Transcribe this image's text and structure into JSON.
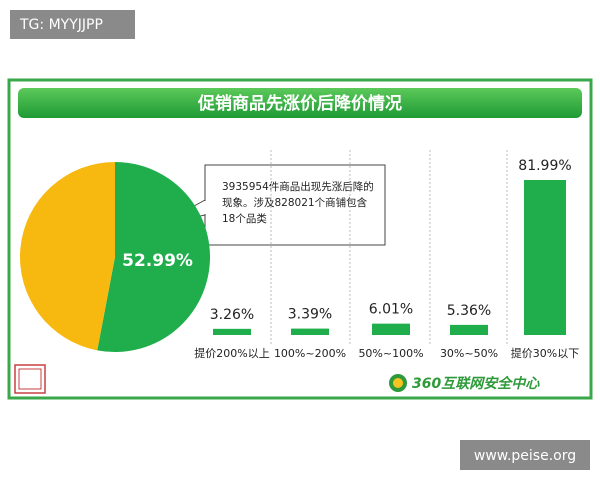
{
  "watermark": "TG: MYYJJPP",
  "site": "www.peise.org",
  "brand": "360互联网安全中心",
  "chart_data": [
    {
      "type": "pie",
      "title": "促销商品先涨价后降价情况",
      "values": [
        52.99,
        47.01
      ],
      "value_labels": [
        "52.99%",
        null
      ],
      "colors": [
        "#1fae4b",
        "#f7b90f"
      ],
      "annotation": [
        "3935954件商品出现先涨后降的",
        "现象。涉及828021个商铺包含",
        "18个品类"
      ]
    },
    {
      "type": "bar",
      "categories": [
        "提价200%以上",
        "100%~200%",
        "50%~100%",
        "30%~50%",
        "提价30%以下"
      ],
      "values": [
        3.26,
        3.39,
        6.01,
        5.36,
        81.99
      ],
      "value_labels": [
        "3.26%",
        "3.39%",
        "6.01%",
        "5.36%",
        "81.99%"
      ],
      "color": "#1fae4b"
    }
  ]
}
